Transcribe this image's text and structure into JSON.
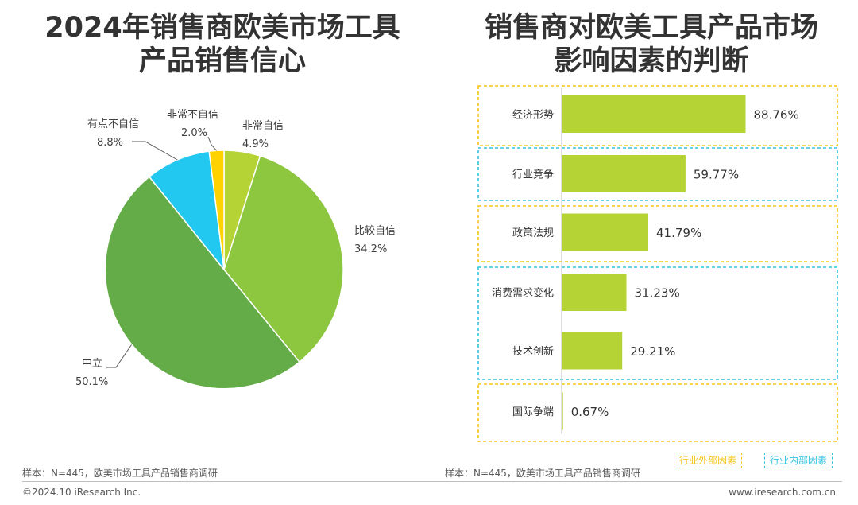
{
  "left": {
    "title_lines": [
      "2024年销售商欧美市场工具",
      "产品销售信心"
    ],
    "sample_note": "样本：N=445，欧美市场工具产品销售商调研"
  },
  "right": {
    "title_lines": [
      "销售商对欧美工具产品市场",
      "影响因素的判断"
    ],
    "sample_note": "样本：N=445，欧美市场工具产品销售商调研",
    "legend": {
      "external": {
        "label": "行业外部因素",
        "color": "#f5c518"
      },
      "internal": {
        "label": "行业内部因素",
        "color": "#33c3e0"
      }
    }
  },
  "footer": {
    "copyright": "©2024.10 iResearch Inc.",
    "website": "www.iresearch.com.cn"
  },
  "chart_data": [
    {
      "type": "pie",
      "start_angle_deg": 0,
      "direction": "clockwise",
      "slices": [
        {
          "label": "非常自信",
          "value": 4.9,
          "value_label": "4.9%",
          "color": "#b5d334"
        },
        {
          "label": "比较自信",
          "value": 34.2,
          "value_label": "34.2%",
          "color": "#8dc63f"
        },
        {
          "label": "中立",
          "value": 50.1,
          "value_label": "50.1%",
          "color": "#64ac48"
        },
        {
          "label": "有点不自信",
          "value": 8.8,
          "value_label": "8.8%",
          "color": "#22c8f0"
        },
        {
          "label": "非常不自信",
          "value": 2.0,
          "value_label": "2.0%",
          "color": "#ffd200"
        }
      ]
    },
    {
      "type": "bar",
      "orientation": "horizontal",
      "bar_color": "#b5d334",
      "categories": [
        "经济形势",
        "行业竞争",
        "政策法规",
        "消费需求变化",
        "技术创新",
        "国际争端"
      ],
      "values": [
        88.76,
        59.77,
        41.79,
        31.23,
        29.21,
        0.67
      ],
      "value_labels": [
        "88.76%",
        "59.77%",
        "41.79%",
        "31.23%",
        "29.21%",
        "0.67%"
      ],
      "groups": [
        {
          "type": "external",
          "categories": [
            "经济形势"
          ]
        },
        {
          "type": "internal",
          "categories": [
            "行业竞争"
          ]
        },
        {
          "type": "external",
          "categories": [
            "政策法规"
          ]
        },
        {
          "type": "internal",
          "categories": [
            "消费需求变化",
            "技术创新"
          ]
        },
        {
          "type": "external",
          "categories": [
            "国际争端"
          ]
        }
      ]
    }
  ]
}
